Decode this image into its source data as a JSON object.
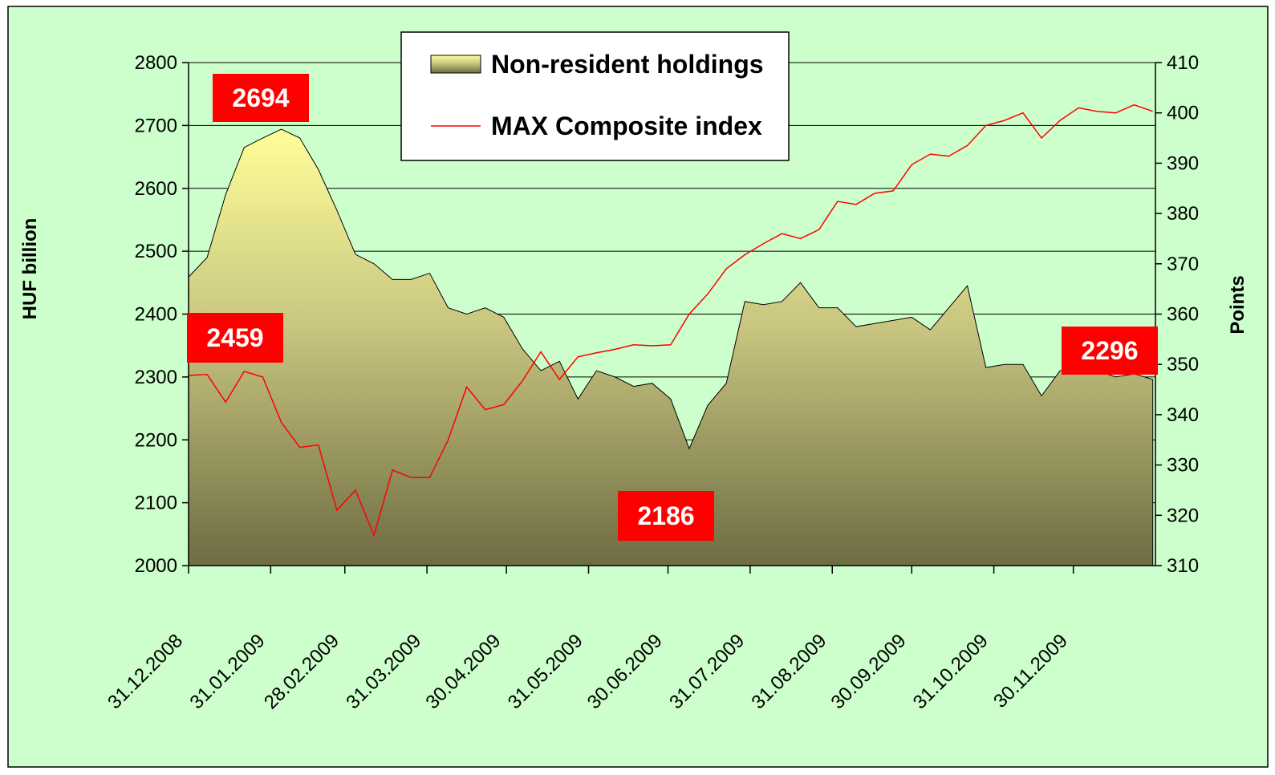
{
  "chart_data": {
    "type": "area",
    "y_label": "HUF billion",
    "y2_label": "Points",
    "x": [
      "31.12.2008",
      "07.01.2009",
      "14.01.2009",
      "21.01.2009",
      "28.01.2009",
      "04.02.2009",
      "11.02.2009",
      "18.02.2009",
      "25.02.2009",
      "04.03.2009",
      "11.03.2009",
      "18.03.2009",
      "25.03.2009",
      "01.04.2009",
      "08.04.2009",
      "15.04.2009",
      "22.04.2009",
      "29.04.2009",
      "06.05.2009",
      "13.05.2009",
      "20.05.2009",
      "27.05.2009",
      "03.06.2009",
      "10.06.2009",
      "17.06.2009",
      "24.06.2009",
      "01.07.2009",
      "08.07.2009",
      "15.07.2009",
      "22.07.2009",
      "29.07.2009",
      "05.08.2009",
      "12.08.2009",
      "19.08.2009",
      "26.08.2009",
      "02.09.2009",
      "09.09.2009",
      "16.09.2009",
      "23.09.2009",
      "30.09.2009",
      "07.10.2009",
      "14.10.2009",
      "21.10.2009",
      "28.10.2009",
      "04.11.2009",
      "11.11.2009",
      "18.11.2009",
      "25.11.2009",
      "02.12.2009",
      "09.12.2009",
      "16.12.2009",
      "23.12.2009",
      "30.12.2009"
    ],
    "series": [
      {
        "name": "Non-resident holdings",
        "type": "area",
        "axis": "y",
        "color": "#8c8c58",
        "values": [
          2459,
          2490,
          2590,
          2665,
          2680,
          2694,
          2680,
          2630,
          2565,
          2495,
          2480,
          2455,
          2455,
          2465,
          2410,
          2400,
          2410,
          2395,
          2345,
          2310,
          2325,
          2265,
          2310,
          2300,
          2285,
          2290,
          2265,
          2186,
          2255,
          2290,
          2420,
          2415,
          2420,
          2450,
          2410,
          2410,
          2380,
          2385,
          2390,
          2395,
          2375,
          2410,
          2445,
          2315,
          2320,
          2320,
          2270,
          2310,
          2315,
          2310,
          2300,
          2305,
          2296
        ]
      },
      {
        "name": "MAX Composite index",
        "type": "line",
        "axis": "y2",
        "color": "#ff0000",
        "values": [
          347.8,
          348,
          342.5,
          348.6,
          347.5,
          338.5,
          333.5,
          334,
          321,
          325,
          316,
          329,
          327.5,
          327.5,
          335,
          345.5,
          341,
          342,
          346.7,
          352.5,
          347,
          351.5,
          352.3,
          353,
          353.9,
          353.7,
          353.9,
          360,
          364,
          369,
          371.8,
          374,
          376,
          375,
          376.8,
          382.4,
          381.8,
          384,
          384.5,
          389.7,
          391.8,
          391.4,
          393.5,
          397.5,
          398.5,
          400,
          395,
          398.5,
          401,
          400.3,
          400,
          401.6,
          400.3
        ]
      }
    ],
    "xlim": [
      "31.12.2008",
      "31.12.2009"
    ],
    "xticks": [
      "31.12.2008",
      "31.01.2009",
      "28.02.2009",
      "31.03.2009",
      "30.04.2009",
      "31.05.2009",
      "30.06.2009",
      "31.07.2009",
      "31.08.2009",
      "30.09.2009",
      "31.10.2009",
      "30.11.2009"
    ],
    "ylim": [
      2000,
      2800
    ],
    "yticks": [
      2000,
      2100,
      2200,
      2300,
      2400,
      2500,
      2600,
      2700,
      2800
    ],
    "y2lim": [
      310,
      410
    ],
    "y2ticks": [
      310,
      320,
      330,
      340,
      350,
      360,
      370,
      380,
      390,
      400,
      410
    ],
    "grid": true,
    "annotations": [
      2694,
      2459,
      2186,
      2296
    ],
    "annotation_color": "#ff0000"
  }
}
